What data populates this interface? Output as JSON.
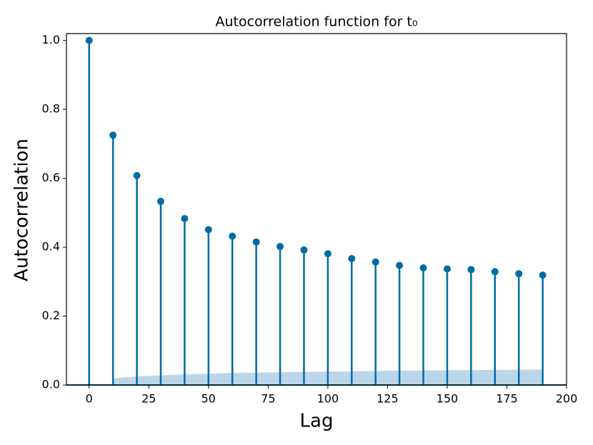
{
  "chart_data": {
    "type": "stem",
    "title": "Autocorrelation function for t₀",
    "x_label": "Lag",
    "y_label": "Autocorrelation",
    "x": [
      0,
      10,
      20,
      30,
      40,
      50,
      60,
      70,
      80,
      90,
      100,
      110,
      120,
      130,
      140,
      150,
      160,
      170,
      180,
      190
    ],
    "values": [
      1.0,
      0.725,
      0.608,
      0.533,
      0.483,
      0.451,
      0.432,
      0.415,
      0.402,
      0.392,
      0.381,
      0.367,
      0.357,
      0.347,
      0.34,
      0.337,
      0.335,
      0.329,
      0.323,
      0.319
    ],
    "color": "#006ba4",
    "confidence_band": [
      null,
      0.019,
      0.025,
      0.028,
      0.031,
      0.033,
      0.035,
      0.036,
      0.037,
      0.038,
      0.039,
      0.04,
      0.041,
      0.042,
      0.042,
      0.043,
      0.043,
      0.044,
      0.044,
      0.045
    ],
    "band_color": "#bcd6e9",
    "xlim": [
      -9.5,
      200
    ],
    "ylim": [
      0,
      1.02
    ],
    "xticks": [
      0,
      25,
      50,
      75,
      100,
      125,
      150,
      175,
      200
    ],
    "yticks": [
      {
        "value": 0,
        "label": "0.0"
      },
      0.2,
      0.4,
      0.6,
      0.8,
      {
        "value": 1,
        "label": "1.0"
      }
    ]
  }
}
